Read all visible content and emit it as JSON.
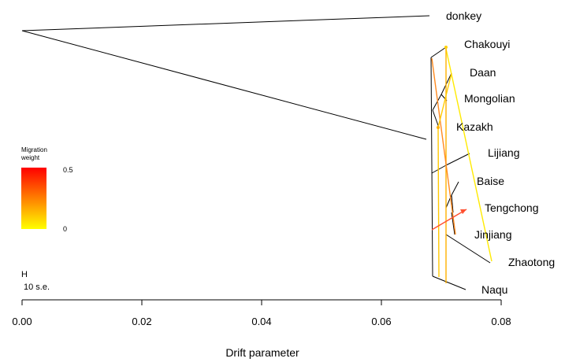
{
  "chart_data": {
    "type": "tree",
    "xlabel": "Drift parameter",
    "xlim": [
      0.0,
      0.08
    ],
    "x_ticks": [
      "0.00",
      "0.02",
      "0.04",
      "0.06",
      "0.08"
    ],
    "x_tick_values": [
      0.0,
      0.02,
      0.04,
      0.06,
      0.08
    ],
    "leaves": [
      {
        "name": "donkey",
        "drift": 0.0685
      },
      {
        "name": "Chakouyi",
        "drift": 0.0711
      },
      {
        "name": "Daan",
        "drift": 0.0718
      },
      {
        "name": "Mongolian",
        "drift": 0.0704
      },
      {
        "name": "Kazakh",
        "drift": 0.07
      },
      {
        "name": "Lijiang",
        "drift": 0.0747
      },
      {
        "name": "Baise",
        "drift": 0.0732
      },
      {
        "name": "Tengchong",
        "drift": 0.0744
      },
      {
        "name": "Jinjiang",
        "drift": 0.073
      },
      {
        "name": "Zhaotong",
        "drift": 0.0788
      },
      {
        "name": "Naqu",
        "drift": 0.0742
      }
    ],
    "migration_edges": [
      {
        "from": "Chakouyi",
        "to": "Zhaotong",
        "weight": 0.05
      },
      {
        "from": "Chakouyi",
        "to": "Naqu",
        "weight": 0.2
      },
      {
        "from": "Chakouyi",
        "to": "Jinjiang",
        "weight": 0.35
      },
      {
        "from": "Daan",
        "to": "Kazakh",
        "weight": 0.25
      },
      {
        "from": "Kazakh",
        "to": "Naqu",
        "weight": 0.15
      },
      {
        "from": "Jinjiang",
        "to": "Tengchong",
        "weight": 0.45
      }
    ],
    "legend": {
      "title_line1": "Migration",
      "title_line2": "weight",
      "max_label": "0.5",
      "min_label": "0",
      "color_max": "#ff0000",
      "color_min": "#ffff00"
    },
    "scale_bar": {
      "symbol": "H",
      "label": "10 s.e."
    },
    "grid": false
  }
}
